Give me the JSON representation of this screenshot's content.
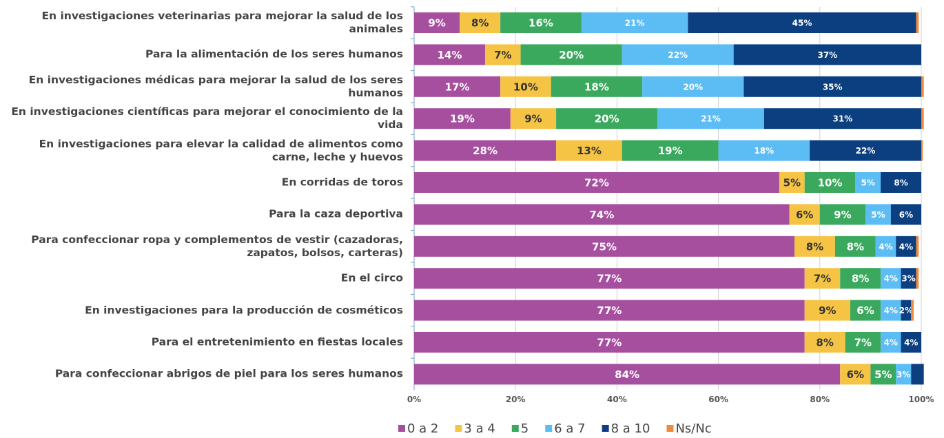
{
  "chart_data": {
    "type": "stacked_barh",
    "categories": [
      "En investigaciones veterinarias para mejorar la salud de los animales",
      "Para la alimentación de los seres humanos",
      "En investigaciones médicas para mejorar la salud de los seres humanos",
      "En investigaciones científicas para mejorar el conocimiento de la vida",
      "En investigaciones para elevar la calidad de alimentos como carne, leche y huevos",
      "En corridas de toros",
      "Para la caza deportiva",
      "Para confeccionar ropa y complementos de vestir (cazadoras, zapatos, bolsos, carteras)",
      "En el circo",
      "En investigaciones para la producción de cosméticos",
      "Para el entretenimiento en fiestas locales",
      "Para confeccionar abrigos de piel para los seres humanos"
    ],
    "series": [
      {
        "name": "0 a 2",
        "color": "#a64f9f",
        "values": [
          9,
          14,
          17,
          19,
          28,
          72,
          74,
          75,
          77,
          77,
          77,
          84
        ],
        "value_labels": [
          "9%",
          "14%",
          "17%",
          "19%",
          "28%",
          "72%",
          "74%",
          "75%",
          "77%",
          "77%",
          "77%",
          "84%"
        ]
      },
      {
        "name": "3 a 4",
        "color": "#f6c445",
        "values": [
          8,
          7,
          10,
          9,
          13,
          5,
          6,
          8,
          7,
          9,
          8,
          6
        ],
        "value_labels": [
          "8%",
          "7%",
          "10%",
          "9%",
          "13%",
          "5%",
          "6%",
          "8%",
          "7%",
          "9%",
          "8%",
          "6%"
        ]
      },
      {
        "name": "5",
        "color": "#3aa85d",
        "values": [
          16,
          20,
          18,
          20,
          19,
          10,
          9,
          8,
          8,
          6,
          7,
          5
        ],
        "value_labels": [
          "16%",
          "20%",
          "18%",
          "20%",
          "19%",
          "10%",
          "9%",
          "8%",
          "8%",
          "6%",
          "7%",
          "5%"
        ]
      },
      {
        "name": "6 a 7",
        "color": "#5cbdf4",
        "values": [
          21,
          22,
          20,
          21,
          18,
          5,
          5,
          4,
          4,
          4,
          4,
          3
        ],
        "value_labels": [
          "21%",
          "22%",
          "20%",
          "21%",
          "18%",
          "5%",
          "5%",
          "4%",
          "4%",
          "4%",
          "4%",
          "3%"
        ]
      },
      {
        "name": "8 a 10",
        "color": "#0b3f80",
        "values": [
          45,
          37,
          35,
          31,
          22,
          8,
          6,
          4,
          3,
          2,
          4,
          2.5
        ],
        "value_labels": [
          "45%",
          "37%",
          "35%",
          "31%",
          "22%",
          "8%",
          "6%",
          "4%",
          "3%",
          "2%",
          "4%",
          null
        ]
      },
      {
        "name": "Ns/Nc",
        "color": "#f08a3c",
        "values": [
          0.5,
          0,
          0.5,
          0.5,
          0.3,
          0,
          0,
          0.5,
          0.5,
          0.5,
          0,
          0
        ],
        "value_labels": [
          null,
          null,
          null,
          null,
          null,
          null,
          null,
          null,
          null,
          null,
          null,
          null
        ]
      }
    ],
    "xlim": [
      0,
      100
    ],
    "xticks": [
      {
        "value": 0,
        "label": "0%"
      },
      {
        "value": 20,
        "label": "20%"
      },
      {
        "value": 40,
        "label": "40%"
      },
      {
        "value": 60,
        "label": "60%"
      },
      {
        "value": 80,
        "label": "80%"
      },
      {
        "value": 100,
        "label": "100%"
      }
    ],
    "grid": true,
    "legend": "bottom"
  }
}
